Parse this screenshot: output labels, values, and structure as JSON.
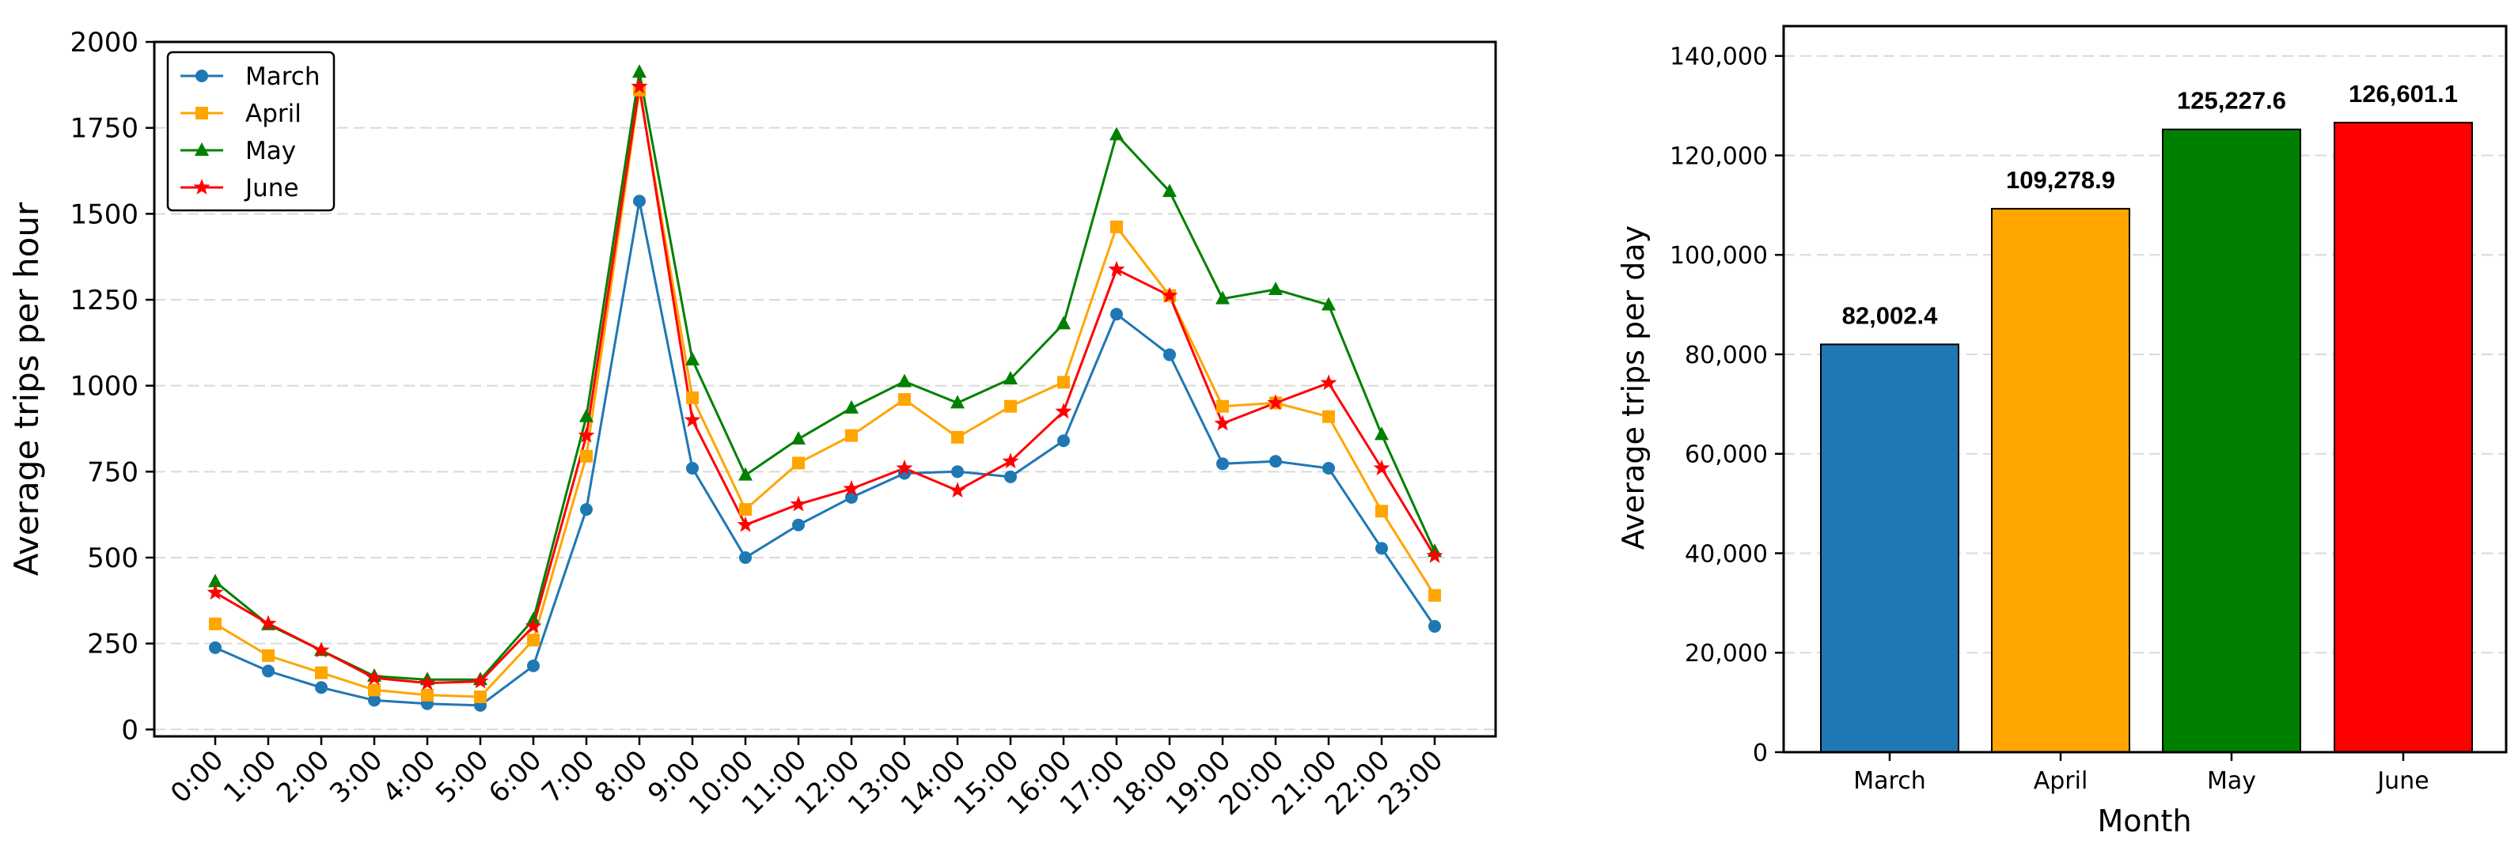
{
  "chart_data": [
    {
      "type": "line",
      "title": "",
      "xlabel": "",
      "ylabel": "Average trips per hour",
      "ylim": [
        -20,
        2000
      ],
      "yticks": [
        0,
        250,
        500,
        750,
        1000,
        1250,
        1500,
        1750,
        2000
      ],
      "ytick_labels": [
        "0",
        "250",
        "500",
        "750",
        "1000",
        "1250",
        "1500",
        "1750",
        "2000"
      ],
      "categories": [
        "0:00",
        "1:00",
        "2:00",
        "3:00",
        "4:00",
        "5:00",
        "6:00",
        "7:00",
        "8:00",
        "9:00",
        "10:00",
        "11:00",
        "12:00",
        "13:00",
        "14:00",
        "15:00",
        "16:00",
        "17:00",
        "18:00",
        "19:00",
        "20:00",
        "21:00",
        "22:00",
        "23:00"
      ],
      "grid": "y-dashed",
      "legend": "upper left",
      "series": [
        {
          "name": "March",
          "color": "#1f77b4",
          "marker": "circle",
          "values": [
            238,
            170,
            122,
            85,
            75,
            70,
            185,
            640,
            1537,
            760,
            500,
            595,
            675,
            745,
            750,
            735,
            840,
            1208,
            1090,
            773,
            780,
            760,
            527,
            300
          ]
        },
        {
          "name": "April",
          "color": "#ffa500",
          "marker": "square",
          "values": [
            307,
            215,
            165,
            115,
            100,
            95,
            260,
            795,
            1860,
            965,
            640,
            775,
            855,
            960,
            850,
            940,
            1010,
            1462,
            1262,
            940,
            950,
            910,
            635,
            390
          ]
        },
        {
          "name": "May",
          "color": "#008000",
          "marker": "triangle",
          "values": [
            430,
            305,
            230,
            155,
            145,
            145,
            320,
            910,
            1912,
            1075,
            740,
            845,
            935,
            1012,
            950,
            1020,
            1180,
            1730,
            1565,
            1253,
            1280,
            1235,
            858,
            518
          ]
        },
        {
          "name": "June",
          "color": "#ff0000",
          "marker": "star",
          "values": [
            398,
            308,
            230,
            150,
            135,
            140,
            300,
            855,
            1870,
            900,
            595,
            655,
            700,
            760,
            695,
            780,
            925,
            1338,
            1262,
            890,
            950,
            1008,
            760,
            505
          ]
        }
      ]
    },
    {
      "type": "bar",
      "title": "",
      "xlabel": "Month",
      "ylabel": "Average trips per day",
      "ylim": [
        0,
        146000
      ],
      "yticks": [
        0,
        20000,
        40000,
        60000,
        80000,
        100000,
        120000,
        140000
      ],
      "ytick_labels": [
        "0",
        "20,000",
        "40,000",
        "60,000",
        "80,000",
        "100,000",
        "120,000",
        "140,000"
      ],
      "grid": "y-dashed",
      "categories": [
        "March",
        "April",
        "May",
        "June"
      ],
      "values": [
        82002.4,
        109278.9,
        125227.6,
        126601.1
      ],
      "value_labels": [
        "82,002.4",
        "109,278.9",
        "125,227.6",
        "126,601.1"
      ],
      "colors": [
        "#1f77b4",
        "#ffa500",
        "#008000",
        "#ff0000"
      ]
    }
  ]
}
